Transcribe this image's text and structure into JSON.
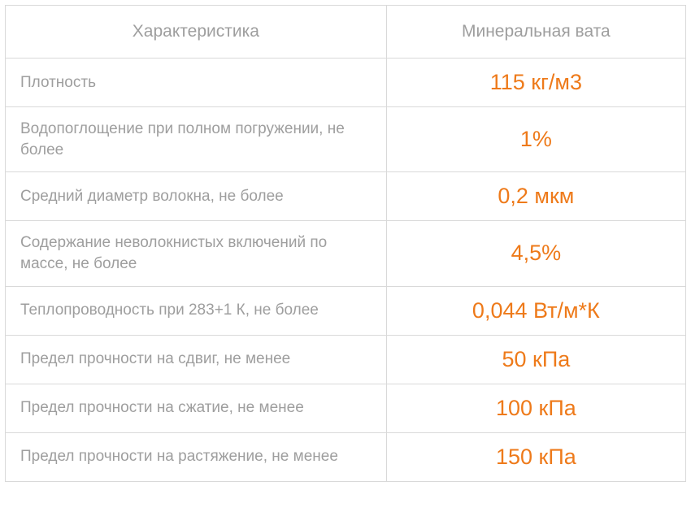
{
  "table": {
    "columns": [
      {
        "label": "Характеристика",
        "width": "56%",
        "align": "center"
      },
      {
        "label": "Минеральная вата",
        "width": "44%",
        "align": "center"
      }
    ],
    "rows": [
      {
        "characteristic": "Плотность",
        "value": "115 кг/м3"
      },
      {
        "characteristic": "Водопоглощение при полном погружении, не более",
        "value": "1%"
      },
      {
        "characteristic": "Средний диаметр волокна, не более",
        "value": "0,2 мкм"
      },
      {
        "characteristic": "Содержание неволокнистых включений по массе, не более",
        "value": "4,5%"
      },
      {
        "characteristic": "Теплопроводность при 283+1 К, не более",
        "value": "0,044 Вт/м*К"
      },
      {
        "characteristic": "Предел прочности на сдвиг, не менее",
        "value": "50 кПа"
      },
      {
        "characteristic": "Предел прочности на сжатие, не менее",
        "value": "100 кПа"
      },
      {
        "characteristic": "Предел прочности на растяжение, не менее",
        "value": "150 кПа"
      }
    ],
    "styling": {
      "header_text_color": "#9e9e9e",
      "header_fontsize": 21,
      "characteristic_text_color": "#9e9e9e",
      "characteristic_fontsize": 19,
      "value_text_color": "#ee7a1a",
      "value_fontsize": 27,
      "border_color": "#d9d9d9",
      "background_color": "#ffffff",
      "font_family": "Arial"
    }
  }
}
